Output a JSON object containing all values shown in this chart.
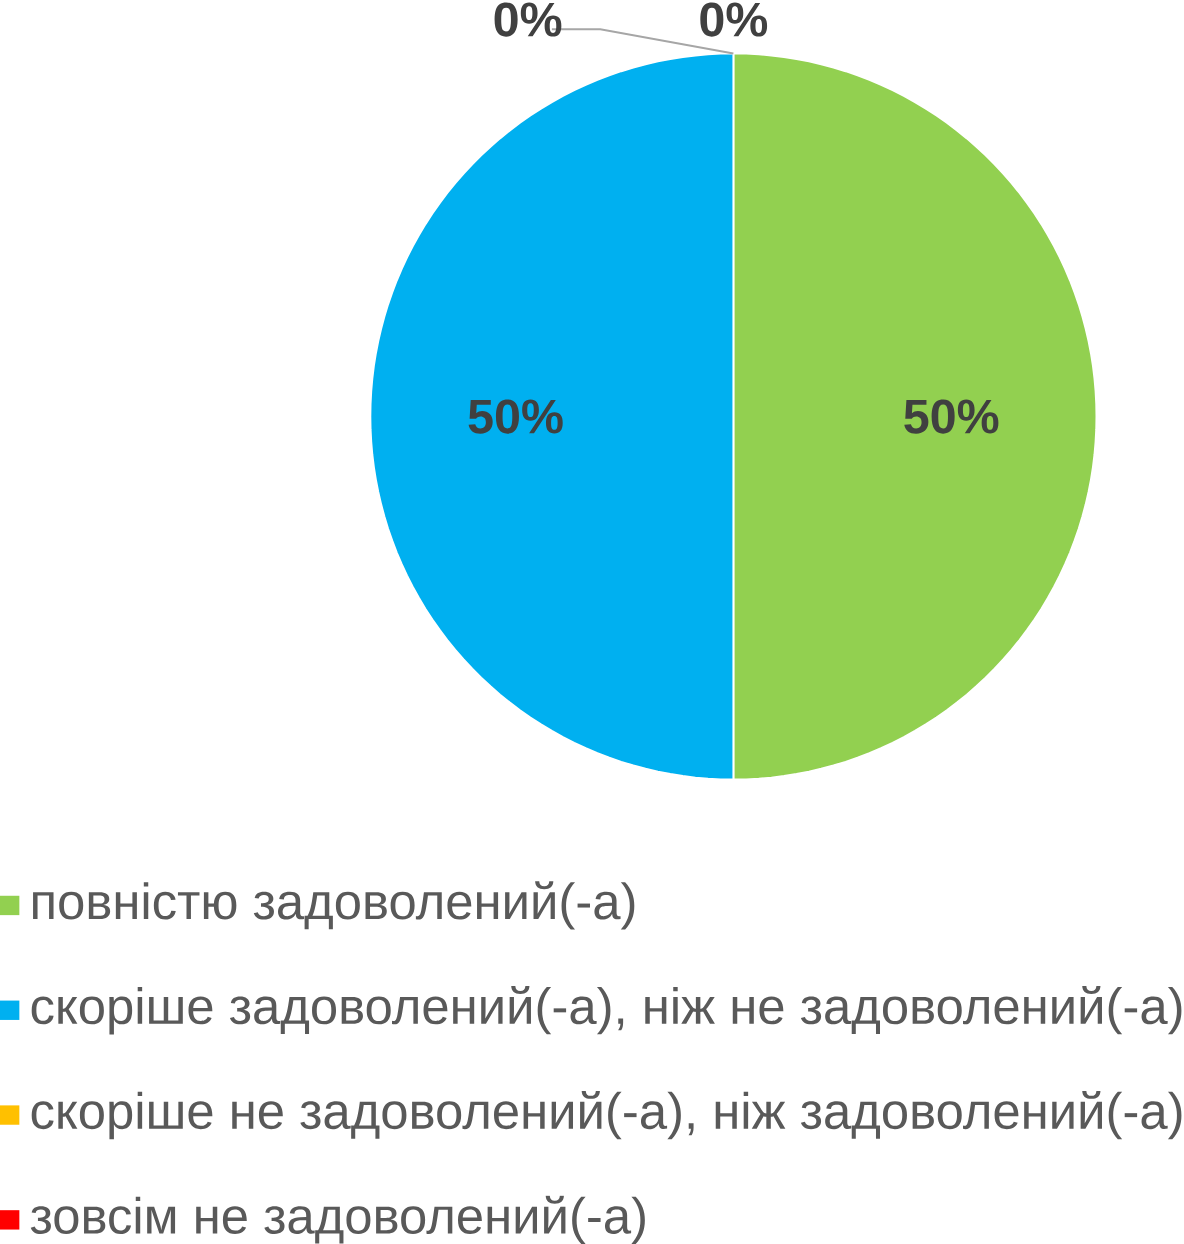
{
  "chart_data": {
    "type": "pie",
    "categories": [
      "повністю задоволений(-а)",
      "скоріше задоволений(-а), ніж не задоволений(-а)",
      "скоріше не задоволений(-а), ніж задоволений(-а)",
      "зовсім не задоволений(-а)"
    ],
    "values": [
      50,
      50,
      0,
      0
    ],
    "colors": [
      "#92d050",
      "#00b0f0",
      "#ffc000",
      "#ff0000"
    ],
    "value_labels": [
      "50%",
      "50%",
      "0%",
      "0%"
    ],
    "legend": "bottom"
  }
}
